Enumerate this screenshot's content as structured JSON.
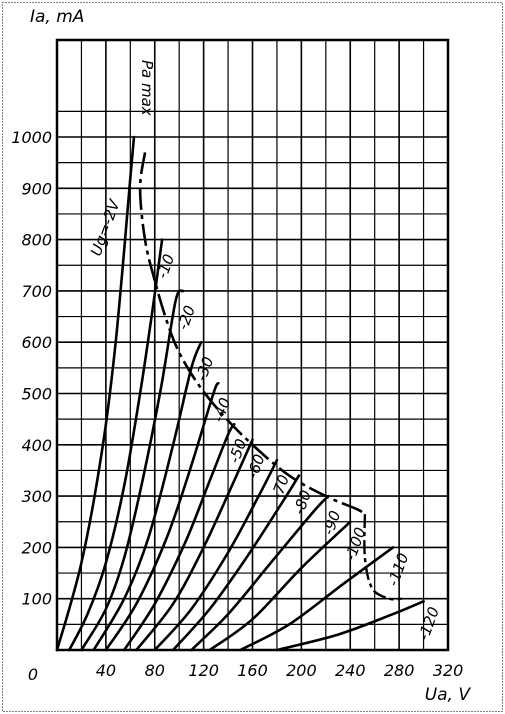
{
  "chart_data": {
    "type": "line",
    "title": "",
    "ylabel": "Ia, mA",
    "xlabel": "Ua, V",
    "xlim": [
      0,
      320
    ],
    "ylim": [
      0,
      1100
    ],
    "grid": true,
    "x_ticks": [
      "0",
      "40",
      "80",
      "120",
      "160",
      "200",
      "240",
      "280",
      "320"
    ],
    "y_ticks": [
      "100",
      "200",
      "300",
      "400",
      "500",
      "600",
      "700",
      "800",
      "900",
      "1000"
    ],
    "series": [
      {
        "name": "Ug=-2V",
        "points": [
          [
            0,
            0
          ],
          [
            10,
            80
          ],
          [
            20,
            170
          ],
          [
            30,
            290
          ],
          [
            40,
            440
          ],
          [
            48,
            600
          ],
          [
            55,
            780
          ],
          [
            60,
            920
          ],
          [
            63,
            1000
          ]
        ]
      },
      {
        "name": "-10",
        "points": [
          [
            10,
            0
          ],
          [
            25,
            70
          ],
          [
            40,
            170
          ],
          [
            55,
            320
          ],
          [
            68,
            500
          ],
          [
            78,
            660
          ],
          [
            86,
            800
          ]
        ]
      },
      {
        "name": "-20",
        "points": [
          [
            20,
            0
          ],
          [
            40,
            80
          ],
          [
            55,
            180
          ],
          [
            70,
            330
          ],
          [
            85,
            510
          ],
          [
            97,
            680
          ],
          [
            103,
            700
          ]
        ]
      },
      {
        "name": "-30",
        "points": [
          [
            30,
            0
          ],
          [
            55,
            100
          ],
          [
            75,
            220
          ],
          [
            95,
            400
          ],
          [
            110,
            550
          ],
          [
            118,
            600
          ]
        ]
      },
      {
        "name": "-40",
        "points": [
          [
            40,
            0
          ],
          [
            65,
            90
          ],
          [
            90,
            220
          ],
          [
            110,
            360
          ],
          [
            128,
            500
          ],
          [
            132,
            520
          ]
        ]
      },
      {
        "name": "-50",
        "points": [
          [
            55,
            0
          ],
          [
            80,
            90
          ],
          [
            105,
            210
          ],
          [
            125,
            330
          ],
          [
            140,
            420
          ],
          [
            145,
            440
          ]
        ]
      },
      {
        "name": "-60",
        "points": [
          [
            65,
            0
          ],
          [
            95,
            90
          ],
          [
            120,
            200
          ],
          [
            145,
            330
          ],
          [
            160,
            410
          ]
        ]
      },
      {
        "name": "-70",
        "points": [
          [
            80,
            0
          ],
          [
            110,
            80
          ],
          [
            140,
            190
          ],
          [
            165,
            300
          ],
          [
            180,
            370
          ]
        ]
      },
      {
        "name": "-80",
        "points": [
          [
            95,
            0
          ],
          [
            125,
            80
          ],
          [
            155,
            180
          ],
          [
            185,
            290
          ],
          [
            198,
            340
          ]
        ]
      },
      {
        "name": "-90",
        "points": [
          [
            110,
            0
          ],
          [
            140,
            70
          ],
          [
            175,
            170
          ],
          [
            210,
            270
          ],
          [
            222,
            300
          ]
        ]
      },
      {
        "name": "-100",
        "points": [
          [
            125,
            0
          ],
          [
            160,
            60
          ],
          [
            200,
            160
          ],
          [
            240,
            250
          ]
        ]
      },
      {
        "name": "-110",
        "points": [
          [
            150,
            0
          ],
          [
            190,
            50
          ],
          [
            235,
            130
          ],
          [
            275,
            200
          ]
        ]
      },
      {
        "name": "-120",
        "points": [
          [
            180,
            0
          ],
          [
            230,
            30
          ],
          [
            275,
            70
          ],
          [
            300,
            95
          ]
        ]
      }
    ],
    "limit_curve": {
      "name": "Pa max",
      "points": [
        [
          72,
          970
        ],
        [
          68,
          900
        ],
        [
          72,
          800
        ],
        [
          80,
          720
        ],
        [
          90,
          640
        ],
        [
          100,
          580
        ],
        [
          115,
          520
        ],
        [
          135,
          460
        ],
        [
          160,
          400
        ],
        [
          190,
          340
        ],
        [
          220,
          300
        ],
        [
          245,
          275
        ],
        [
          252,
          265
        ]
      ]
    },
    "limit_drop": [
      [
        252,
        265
      ],
      [
        252,
        180
      ],
      [
        258,
        120
      ],
      [
        272,
        100
      ],
      [
        282,
        100
      ]
    ]
  }
}
